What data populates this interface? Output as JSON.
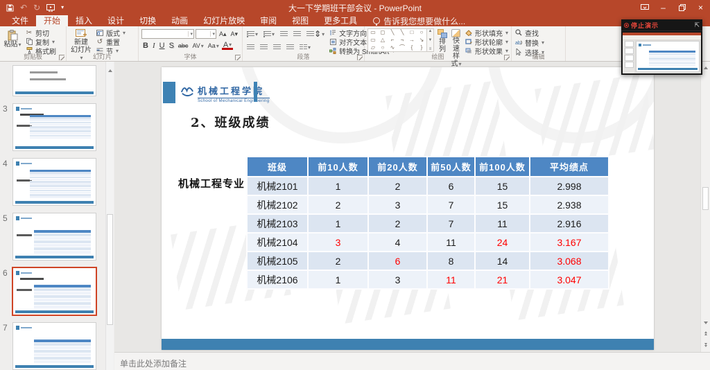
{
  "titlebar": {
    "title": "大一下学期班干部会议 - PowerPoint"
  },
  "tabs": [
    {
      "label": "文件"
    },
    {
      "label": "开始",
      "active": true
    },
    {
      "label": "插入"
    },
    {
      "label": "设计"
    },
    {
      "label": "切换"
    },
    {
      "label": "动画"
    },
    {
      "label": "幻灯片放映"
    },
    {
      "label": "审阅"
    },
    {
      "label": "视图"
    },
    {
      "label": "更多工具"
    }
  ],
  "tell_me": "告诉我您想要做什么...",
  "ribbon": {
    "clipboard": {
      "label": "剪贴板",
      "paste": "粘贴",
      "cut": "剪切",
      "copy": "复制",
      "format_painter": "格式刷"
    },
    "slides": {
      "label": "幻灯片",
      "new_slide_1": "新建",
      "new_slide_2": "幻灯片",
      "layout": "版式",
      "reset": "重置",
      "section": "节"
    },
    "font": {
      "label": "字体",
      "buttons": [
        "B",
        "I",
        "U",
        "S",
        "abc",
        "AV",
        "Aa",
        "A"
      ]
    },
    "paragraph": {
      "label": "段落",
      "text_direction": "文字方向",
      "align_text": "对齐文本",
      "smartart": "转换为 SmartArt"
    },
    "drawing": {
      "label": "绘图",
      "arrange": "排列",
      "quick_styles_1": "快速",
      "quick_styles_2": "样式",
      "shape_fill": "形状填充",
      "shape_outline": "形状轮廓",
      "shape_effects": "形状效果",
      "shapes": [
        "▭",
        "◻",
        "╲",
        "╲",
        "□",
        "○",
        "▭",
        "△",
        "⌐",
        "¬",
        "→",
        "↘",
        "▱",
        "○",
        "∿",
        "⌒",
        "{",
        "}"
      ]
    },
    "editing": {
      "label": "编辑",
      "find": "查找",
      "replace": "替换",
      "select": "选择"
    }
  },
  "thumbnails": [
    {
      "num": "",
      "partial": true,
      "rows": 0
    },
    {
      "num": "3",
      "rows": 10,
      "title": true,
      "side_label": true
    },
    {
      "num": "4",
      "rows": 12,
      "side_label": true
    },
    {
      "num": "5",
      "rows": 6,
      "side_label": true
    },
    {
      "num": "6",
      "rows": 6,
      "selected": true,
      "title": true,
      "side_label": true
    },
    {
      "num": "7",
      "rows": 6
    }
  ],
  "slide": {
    "logo_text": "机械工程学院",
    "logo_subtext": "School of Mechanical Engineering",
    "title": "2、班级成绩",
    "side_label": "机械工程专业",
    "table": {
      "headers": [
        "班级",
        "前10人数",
        "前20人数",
        "前50人数",
        "前100人数",
        "平均绩点"
      ],
      "rows": [
        {
          "cells": [
            {
              "t": "机械2101"
            },
            {
              "t": "1"
            },
            {
              "t": "2"
            },
            {
              "t": "6"
            },
            {
              "t": "15"
            },
            {
              "t": "2.998"
            }
          ]
        },
        {
          "cells": [
            {
              "t": "机械2102"
            },
            {
              "t": "2"
            },
            {
              "t": "3"
            },
            {
              "t": "7"
            },
            {
              "t": "15"
            },
            {
              "t": "2.938"
            }
          ]
        },
        {
          "cells": [
            {
              "t": "机械2103"
            },
            {
              "t": "1"
            },
            {
              "t": "2"
            },
            {
              "t": "7"
            },
            {
              "t": "11"
            },
            {
              "t": "2.916"
            }
          ]
        },
        {
          "cells": [
            {
              "t": "机械2104"
            },
            {
              "t": "3",
              "red": true
            },
            {
              "t": "4"
            },
            {
              "t": "11"
            },
            {
              "t": "24",
              "red": true
            },
            {
              "t": "3.167",
              "red": true
            }
          ]
        },
        {
          "cells": [
            {
              "t": "机械2105"
            },
            {
              "t": "2"
            },
            {
              "t": "6",
              "red": true
            },
            {
              "t": "8"
            },
            {
              "t": "14"
            },
            {
              "t": "3.068",
              "red": true
            }
          ]
        },
        {
          "cells": [
            {
              "t": "机械2106"
            },
            {
              "t": "1"
            },
            {
              "t": "3"
            },
            {
              "t": "11",
              "red": true
            },
            {
              "t": "21",
              "red": true
            },
            {
              "t": "3.047",
              "red": true
            }
          ]
        }
      ]
    }
  },
  "notes": {
    "placeholder": "单击此处添加备注"
  },
  "overlay": {
    "status": "停止演示"
  },
  "colors": {
    "accent": "#B7472A",
    "table_header": "#4E87C4",
    "slide_blue": "#3E81B1",
    "red_value": "#FF0000",
    "selected_thumb": "#CF4425"
  }
}
